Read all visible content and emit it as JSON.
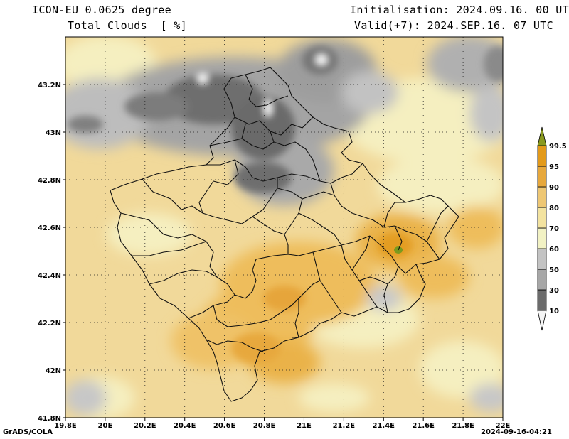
{
  "header": {
    "model": "ICON-EU 0.0625 degree",
    "variable": "Total Clouds  [ %]",
    "initialisation": "Initialisation: 2024.09.16. 00 UTC",
    "valid": "Valid(+7): 2024.SEP.16. 07 UTC"
  },
  "footer": {
    "credit": "GrADS/COLA",
    "timestamp": "2024-09-16-04:21"
  },
  "map": {
    "lon_range": [
      19.8,
      22.0
    ],
    "lat_range": [
      41.8,
      43.4
    ],
    "lon_ticks": [
      "19.8E",
      "20E",
      "20.2E",
      "20.4E",
      "20.6E",
      "20.8E",
      "21E",
      "21.2E",
      "21.4E",
      "21.6E",
      "21.8E",
      "22E"
    ],
    "lat_ticks": [
      "41.8N",
      "42N",
      "42.2N",
      "42.4N",
      "42.6N",
      "42.8N",
      "43N",
      "43.2N"
    ],
    "grid": "dotted",
    "marker_color": "#7a9a1e"
  },
  "legend": {
    "levels": [
      "10",
      "30",
      "50",
      "60",
      "70",
      "80",
      "90",
      "95",
      "99.5"
    ],
    "colors": [
      "#6b6b6b",
      "#8c8c8c",
      "#a7a7a7",
      "#c3c3c3",
      "#f2f2c4",
      "#f3e3a0",
      "#eec774",
      "#e7a83c",
      "#e39a1a"
    ],
    "top_color": "#8a9a20",
    "bottom_color": "#f5f5f5"
  }
}
